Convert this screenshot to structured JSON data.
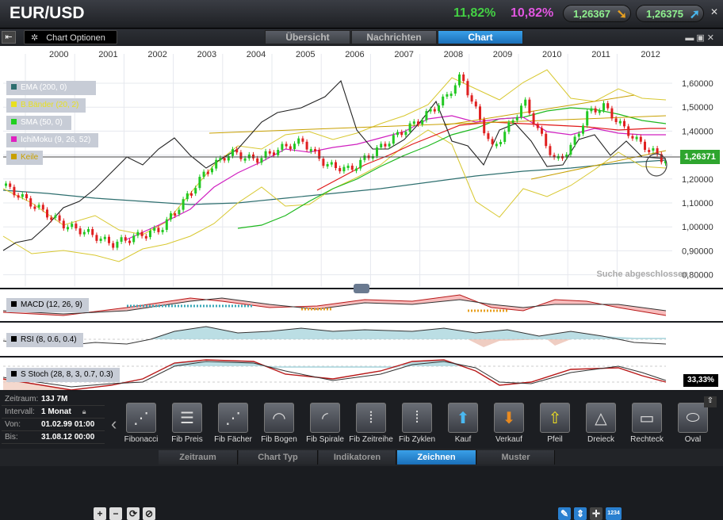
{
  "title": "EUR/USD",
  "header": {
    "pct_up": "11,82%",
    "pct_down": "10,82%",
    "bid": "1,26367",
    "ask": "1,26375"
  },
  "toolbar": {
    "chart_options": "Chart Optionen",
    "tabs": [
      "Übersicht",
      "Nachrichten",
      "Chart"
    ]
  },
  "chart": {
    "years": [
      "2000",
      "2001",
      "2002",
      "2003",
      "2004",
      "2005",
      "2006",
      "2007",
      "2008",
      "2009",
      "2010",
      "2011",
      "2012"
    ],
    "y_ticks": [
      "1,60000",
      "1,50000",
      "1,40000",
      "1,30000",
      "1,20000",
      "1,10000",
      "1,00000",
      "0,90000",
      "0,80000"
    ],
    "current_price": "1,26371",
    "status": "Suche abgeschlossen",
    "legend": [
      {
        "label": "EMA (200, 0)",
        "color": "#2e6f6f"
      },
      {
        "label": "B.Bänder (20, 2)",
        "color": "#e8e020"
      },
      {
        "label": "SMA (50, 0)",
        "color": "#20d020"
      },
      {
        "label": "IchiMoku (9, 26, 52)",
        "color": "#e020c0"
      },
      {
        "label": "Keile",
        "color": "#c8a000"
      }
    ],
    "indicators": {
      "macd": "MACD (12, 26, 9)",
      "rsi": "RSI (8, 0.6, 0.4)",
      "stoch": "S Stoch (28, 8, 3, 0.7, 0.3)",
      "stoch_value": "33,33%"
    }
  },
  "info": {
    "rows": [
      {
        "key": "Zeitraum:",
        "value": "13J 7M"
      },
      {
        "key": "Intervall:",
        "value": "1 Monat"
      },
      {
        "key": "Von:",
        "value": "01.02.99 01:00"
      },
      {
        "key": "Bis:",
        "value": "31.08.12 00:00"
      }
    ]
  },
  "tools": [
    {
      "label": "Fibonacci",
      "icon": "fib-fan-icon"
    },
    {
      "label": "Fib Preis",
      "icon": "fib-price-icon"
    },
    {
      "label": "Fib Fächer",
      "icon": "fib-fan-icon"
    },
    {
      "label": "Fib Bogen",
      "icon": "fib-arc-icon"
    },
    {
      "label": "Fib Spirale",
      "icon": "fib-spiral-icon"
    },
    {
      "label": "Fib Zeitreihe",
      "icon": "fib-time-icon"
    },
    {
      "label": "Fib Zyklen",
      "icon": "fib-cycle-icon"
    },
    {
      "label": "Kauf",
      "icon": "buy-arrow-icon"
    },
    {
      "label": "Verkauf",
      "icon": "sell-arrow-icon"
    },
    {
      "label": "Pfeil",
      "icon": "arrow-icon"
    },
    {
      "label": "Dreieck",
      "icon": "triangle-icon"
    },
    {
      "label": "Rechteck",
      "icon": "rectangle-icon"
    },
    {
      "label": "Oval",
      "icon": "oval-icon"
    }
  ],
  "bottom_tabs": [
    "Zeitraum",
    "Chart Typ",
    "Indikatoren",
    "Zeichnen",
    "Muster"
  ]
}
